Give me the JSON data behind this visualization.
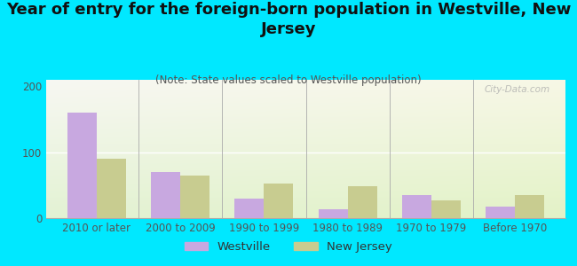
{
  "title": "Year of entry for the foreign-born population in Westville, New\nJersey",
  "subtitle": "(Note: State values scaled to Westville population)",
  "categories": [
    "2010 or later",
    "2000 to 2009",
    "1990 to 1999",
    "1980 to 1989",
    "1970 to 1979",
    "Before 1970"
  ],
  "westville_values": [
    160,
    70,
    30,
    13,
    35,
    18
  ],
  "nj_values": [
    90,
    65,
    52,
    48,
    27,
    35
  ],
  "westville_color": "#c8a8e0",
  "nj_color": "#c8cc90",
  "background_color": "#00e8ff",
  "ylim": [
    0,
    210
  ],
  "yticks": [
    0,
    100,
    200
  ],
  "title_fontsize": 13,
  "subtitle_fontsize": 8.5,
  "tick_fontsize": 8.5,
  "legend_fontsize": 9.5,
  "watermark": "City-Data.com"
}
